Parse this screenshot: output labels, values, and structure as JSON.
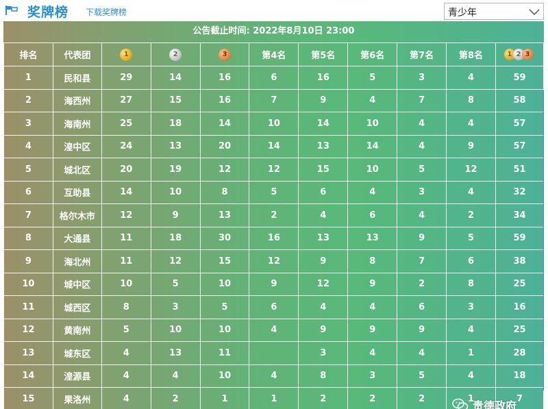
{
  "header": {
    "title": "奖牌榜",
    "download_label": "下载奖牌榜",
    "group_select": {
      "value": "青少年"
    }
  },
  "board": {
    "notice": "公告截止时间: 2022年8月10日 23:00",
    "columns": [
      "排名",
      "代表团",
      "gold-medal-icon",
      "silver-medal-icon",
      "bronze-medal-icon",
      "第4名",
      "第5名",
      "第6名",
      "第7名",
      "第8名",
      "total-medals-icon"
    ],
    "medal_glyphs": {
      "gold": "1",
      "silver": "2",
      "bronze": "3"
    },
    "rows": [
      [
        "1",
        "民和县",
        "29",
        "14",
        "16",
        "6",
        "16",
        "5",
        "3",
        "4",
        "59"
      ],
      [
        "2",
        "海西州",
        "27",
        "15",
        "16",
        "7",
        "9",
        "4",
        "7",
        "8",
        "58"
      ],
      [
        "3",
        "海南州",
        "25",
        "18",
        "14",
        "10",
        "14",
        "10",
        "4",
        "4",
        "57"
      ],
      [
        "4",
        "湟中区",
        "24",
        "13",
        "20",
        "14",
        "13",
        "14",
        "4",
        "9",
        "57"
      ],
      [
        "5",
        "城北区",
        "20",
        "19",
        "12",
        "12",
        "15",
        "10",
        "5",
        "12",
        "51"
      ],
      [
        "6",
        "互助县",
        "14",
        "10",
        "8",
        "5",
        "6",
        "4",
        "3",
        "4",
        "32"
      ],
      [
        "7",
        "格尔木市",
        "12",
        "9",
        "13",
        "2",
        "4",
        "6",
        "4",
        "2",
        "34"
      ],
      [
        "8",
        "大通县",
        "11",
        "18",
        "30",
        "16",
        "13",
        "13",
        "9",
        "5",
        "59"
      ],
      [
        "9",
        "海北州",
        "11",
        "12",
        "15",
        "12",
        "9",
        "8",
        "7",
        "6",
        "38"
      ],
      [
        "10",
        "城中区",
        "10",
        "5",
        "10",
        "9",
        "12",
        "9",
        "2",
        "8",
        "25"
      ],
      [
        "11",
        "城西区",
        "8",
        "3",
        "5",
        "6",
        "4",
        "4",
        "6",
        "3",
        "16"
      ],
      [
        "12",
        "黄南州",
        "5",
        "10",
        "10",
        "4",
        "9",
        "9",
        "9",
        "4",
        "25"
      ],
      [
        "13",
        "城东区",
        "4",
        "13",
        "11",
        "",
        "3",
        "4",
        "4",
        "1",
        "28"
      ],
      [
        "14",
        "湟源县",
        "4",
        "4",
        "10",
        "4",
        "8",
        "3",
        "5",
        "4",
        "18"
      ],
      [
        "15",
        "果洛州",
        "4",
        "2",
        "1",
        "1",
        "2",
        "2",
        "2",
        "1",
        "7"
      ]
    ]
  },
  "watermark": {
    "text": "贵德政府"
  },
  "colors": {
    "accent": "#2a8fd6",
    "gold": "#e0a512",
    "silver": "#bdbdbd",
    "bronze": "#de7a3a"
  }
}
